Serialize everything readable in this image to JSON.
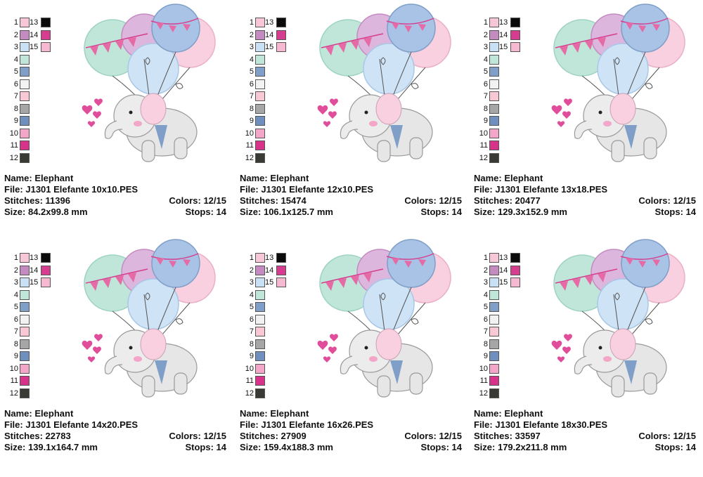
{
  "palette_colors": [
    "#f7c6d8",
    "#c48bc1",
    "#c9e0f5",
    "#bfe6d8",
    "#7f9fc8",
    "#f2f2f2",
    "#f8c9d5",
    "#a6a6a6",
    "#6f8fbf",
    "#f3a6c7",
    "#d8338a",
    "#3a3a35",
    "#0b0b0b",
    "#d63d8e",
    "#f7b8d2"
  ],
  "labels": {
    "name": "Name:",
    "file": "File:",
    "stitches": "Stitches:",
    "colors": "Colors:",
    "size": "Size:",
    "stops": "Stops:"
  },
  "designs": [
    {
      "name": "Elephant",
      "file": "J1301 Elefante 10x10.PES",
      "stitches": "11396",
      "colors": "12/15",
      "size": "84.2x99.8 mm",
      "stops": "14"
    },
    {
      "name": "Elephant",
      "file": "J1301 Elefante 12x10.PES",
      "stitches": "15474",
      "colors": "12/15",
      "size": "106.1x125.7 mm",
      "stops": "14"
    },
    {
      "name": "Elephant",
      "file": "J1301 Elefante 13x18.PES",
      "stitches": "20477",
      "colors": "12/15",
      "size": "129.3x152.9 mm",
      "stops": "14"
    },
    {
      "name": "Elephant",
      "file": "J1301 Elefante 14x20.PES",
      "stitches": "22783",
      "colors": "12/15",
      "size": "139.1x164.7 mm",
      "stops": "14"
    },
    {
      "name": "Elephant",
      "file": "J1301 Elefante 16x26.PES",
      "stitches": "27909",
      "colors": "12/15",
      "size": "159.4x188.3 mm",
      "stops": "14"
    },
    {
      "name": "Elephant",
      "file": "J1301 Elefante 18x30.PES",
      "stitches": "33597",
      "colors": "12/15",
      "size": "179.2x211.8 mm",
      "stops": "14"
    }
  ]
}
